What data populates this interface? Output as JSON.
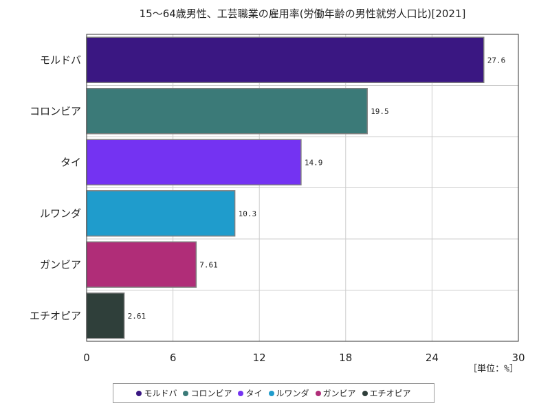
{
  "chart_data": {
    "type": "bar",
    "orientation": "horizontal",
    "title": "15～64歳男性、工芸職業の雇用率(労働年齢の男性就労人口比)[2021]",
    "categories": [
      "モルドバ",
      "コロンビア",
      "タイ",
      "ルワンダ",
      "ガンビア",
      "エチオピア"
    ],
    "values": [
      27.6,
      19.5,
      14.9,
      10.3,
      7.61,
      2.61
    ],
    "value_labels": [
      "27.6",
      "19.5",
      "14.9",
      "10.3",
      "7.61",
      "2.61"
    ],
    "colors": [
      "#3a1782",
      "#3b7a78",
      "#7433f2",
      "#1f9ccc",
      "#b02d78",
      "#2f3f3a"
    ],
    "xlim": [
      0,
      30
    ],
    "xticks": [
      "0",
      "6",
      "12",
      "18",
      "24",
      "30"
    ],
    "unit_label": "［単位：%］",
    "grid": true,
    "legend": {
      "position": "bottom",
      "entries": [
        "モルドバ",
        "コロンビア",
        "タイ",
        "ルワンダ",
        "ガンビア",
        "エチオピア"
      ]
    }
  }
}
